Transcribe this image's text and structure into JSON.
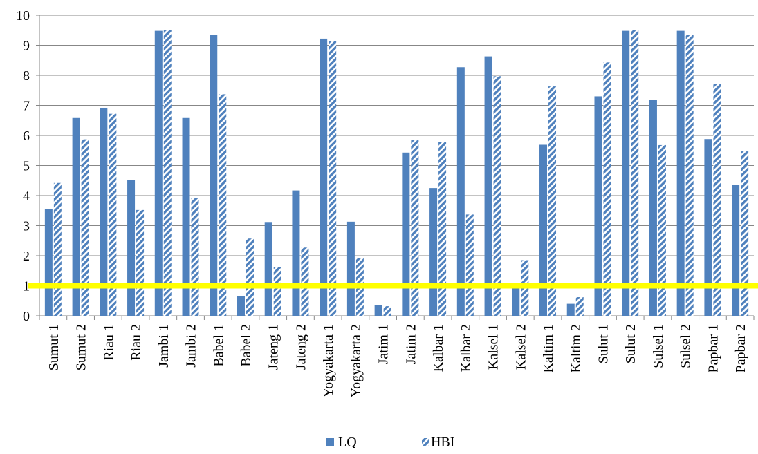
{
  "chart_data": {
    "type": "bar",
    "categories": [
      "Sumut 1",
      "Sumut 2",
      "Riau 1",
      "Riau 2",
      "Jambi 1",
      "Jambi 2",
      "Babel 1",
      "Babel 2",
      "Jateng 1",
      "Jateng 2",
      "Yogyakarta 1",
      "Yogyakarta 2",
      "Jatim 1",
      "Jatim 2",
      "Kalbar 1",
      "Kalbar 2",
      "Kalsel 1",
      "Kalsel 2",
      "Kaltim 1",
      "Kaltim 2",
      "Sulut 1",
      "Sulut 2",
      "Sulsel 1",
      "Sulsel 2",
      "Papbar 1",
      "Papbar 2"
    ],
    "series": [
      {
        "name": "LQ",
        "color": "#4f81bd",
        "pattern": "solid",
        "values": [
          3.55,
          6.58,
          6.92,
          4.52,
          9.48,
          6.58,
          9.35,
          0.65,
          3.12,
          4.17,
          9.22,
          3.13,
          0.35,
          5.43,
          4.25,
          8.27,
          8.63,
          0.92,
          5.69,
          0.4,
          7.3,
          9.48,
          7.18,
          9.48,
          5.88,
          4.35
        ]
      },
      {
        "name": "HBI",
        "color": "#4f81bd",
        "pattern": "hatched",
        "values": [
          4.42,
          5.87,
          6.72,
          3.52,
          9.5,
          3.93,
          7.37,
          2.57,
          1.62,
          2.27,
          9.14,
          1.92,
          0.32,
          5.85,
          5.78,
          3.37,
          7.97,
          1.85,
          7.63,
          0.62,
          8.43,
          9.5,
          5.68,
          9.35,
          7.71,
          5.47
        ]
      }
    ],
    "ylim": [
      0,
      10
    ],
    "yticks": [
      "0",
      "1",
      "2",
      "3",
      "4",
      "5",
      "6",
      "7",
      "8",
      "9",
      "10"
    ],
    "grid": true,
    "legend": "bottom",
    "reference_line": {
      "value": 1,
      "color": "#ffff00"
    }
  }
}
